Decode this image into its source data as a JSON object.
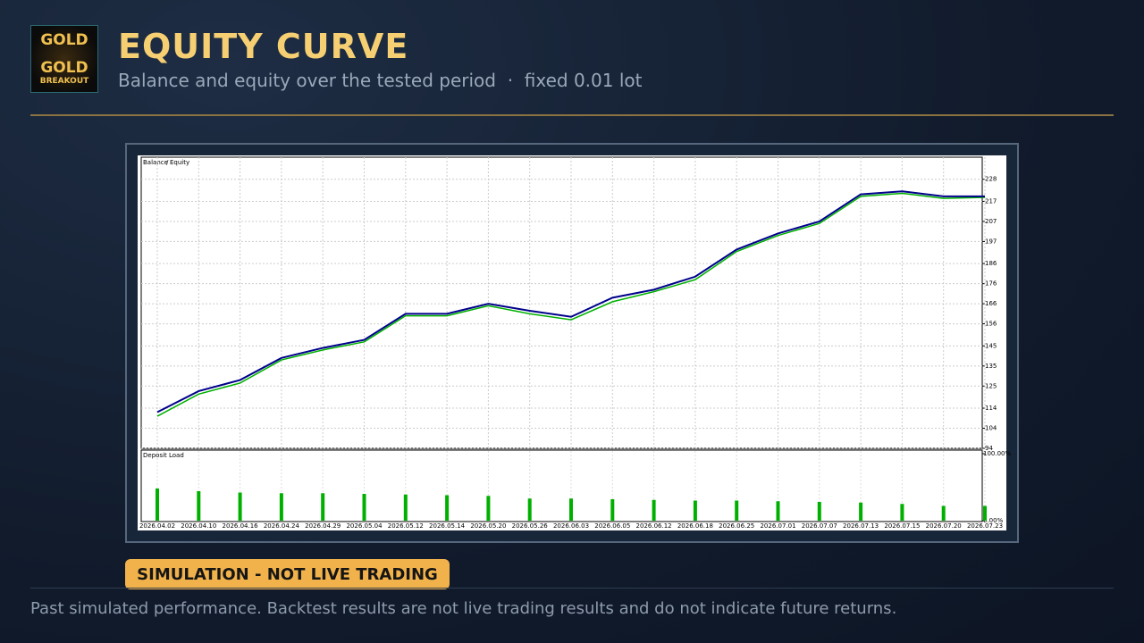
{
  "logo": {
    "lines": [
      "GOLD",
      "GOLD",
      "BREAKOUT"
    ]
  },
  "header": {
    "title": "EQUITY CURVE",
    "subtitle": "Balance and equity over the tested period  ·  fixed 0.01 lot"
  },
  "chart_data": {
    "type": "line",
    "legend_separator": "/",
    "categories": [
      "2026.04.02",
      "2026.04.10",
      "2026.04.16",
      "2026.04.24",
      "2026.04.29",
      "2026.05.04",
      "2026.05.12",
      "2026.05.14",
      "2026.05.20",
      "2026.05.26",
      "2026.06.03",
      "2026.06.05",
      "2026.06.12",
      "2026.06.18",
      "2026.06.25",
      "2026.07.01",
      "2026.07.07",
      "2026.07.13",
      "2026.07.15",
      "2026.07.20",
      "2026.07.23"
    ],
    "series": [
      {
        "name": "Balance",
        "color": "#00008b",
        "values": [
          112,
          122.5,
          128,
          139,
          144,
          148,
          161,
          161,
          166,
          162.5,
          159.5,
          169,
          173,
          179.5,
          193,
          201,
          207,
          220.5,
          222,
          219.5,
          219.5
        ]
      },
      {
        "name": "Equity",
        "color": "#00b000",
        "values": [
          110,
          121,
          126.5,
          138,
          143,
          147,
          160,
          160,
          165,
          161,
          158,
          167,
          172,
          178,
          192,
          200,
          206,
          219.5,
          221,
          218.5,
          219
        ]
      }
    ],
    "ylim": [
      94,
      239
    ],
    "yticks": [
      94,
      104,
      114,
      125,
      135,
      145,
      156,
      166,
      176,
      186,
      197,
      207,
      217,
      228
    ],
    "grid": true,
    "load": {
      "title": "Deposit Load",
      "color": "#00b000",
      "values": [
        48,
        44,
        42,
        41,
        41,
        40,
        39,
        38,
        37,
        33,
        33,
        32,
        31,
        30,
        30,
        29,
        28,
        27,
        25,
        22,
        22
      ],
      "ylim": [
        0,
        100
      ],
      "yticks": [
        {
          "value": 0,
          "label": "0.00%"
        },
        {
          "value": 100,
          "label": "100.00%"
        }
      ]
    }
  },
  "badge": "SIMULATION - NOT LIVE TRADING",
  "footer": "Past simulated performance. Backtest results are not live trading results and do not indicate future returns."
}
